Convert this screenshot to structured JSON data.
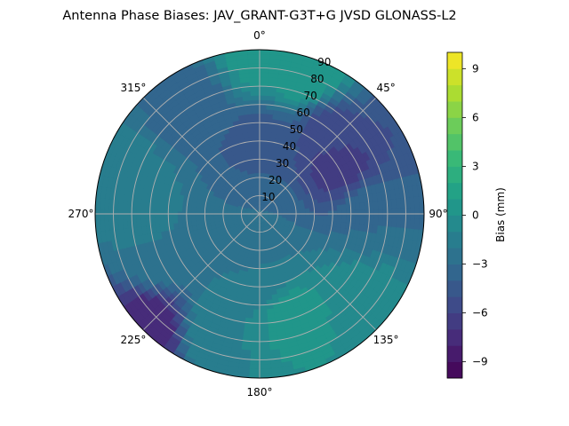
{
  "chart_data": {
    "type": "polar-contour",
    "title": "Antenna Phase Biases: JAV_GRANT-G3T+G JVSD GLONASS-L2",
    "azimuth_ticks": [
      "0°",
      "45°",
      "90°",
      "135°",
      "180°",
      "225°",
      "270°",
      "315°"
    ],
    "azimuth_tick_values": [
      0,
      45,
      90,
      135,
      180,
      225,
      270,
      315
    ],
    "radial_ticks": [
      "10",
      "20",
      "30",
      "40",
      "50",
      "60",
      "70",
      "80",
      "90"
    ],
    "radial_tick_values": [
      10,
      20,
      30,
      40,
      50,
      60,
      70,
      80,
      90
    ],
    "radial_range": [
      0,
      90
    ],
    "azimuth_direction": "clockwise",
    "azimuth_zero": "top",
    "grid": true,
    "colormap": "viridis",
    "colorbar": {
      "label": "Bias (mm)",
      "range": [
        -10,
        10
      ],
      "levels": 20,
      "tick_values": [
        -9,
        -6,
        -3,
        0,
        3,
        6,
        9
      ],
      "tick_labels": [
        "−9",
        "−6",
        "−3",
        "0",
        "3",
        "6",
        "9"
      ]
    },
    "bias_samples": [
      {
        "az": 0,
        "el": 85,
        "bias": 0.5
      },
      {
        "az": 20,
        "el": 80,
        "bias": 1.0
      },
      {
        "az": 40,
        "el": 60,
        "bias": -5.5
      },
      {
        "az": 60,
        "el": 50,
        "bias": -6.5
      },
      {
        "az": 90,
        "el": 60,
        "bias": -3.0
      },
      {
        "az": 130,
        "el": 70,
        "bias": -0.5
      },
      {
        "az": 160,
        "el": 60,
        "bias": 0.5
      },
      {
        "az": 200,
        "el": 70,
        "bias": -1.0
      },
      {
        "az": 225,
        "el": 88,
        "bias": -8.0
      },
      {
        "az": 250,
        "el": 60,
        "bias": -2.0
      },
      {
        "az": 280,
        "el": 75,
        "bias": -1.0
      },
      {
        "az": 330,
        "el": 70,
        "bias": -3.5
      },
      {
        "az": 0,
        "el": 40,
        "bias": -4.5
      },
      {
        "az": 180,
        "el": 30,
        "bias": -2.0
      },
      {
        "az": 0,
        "el": 0,
        "bias": -3.0
      }
    ]
  }
}
